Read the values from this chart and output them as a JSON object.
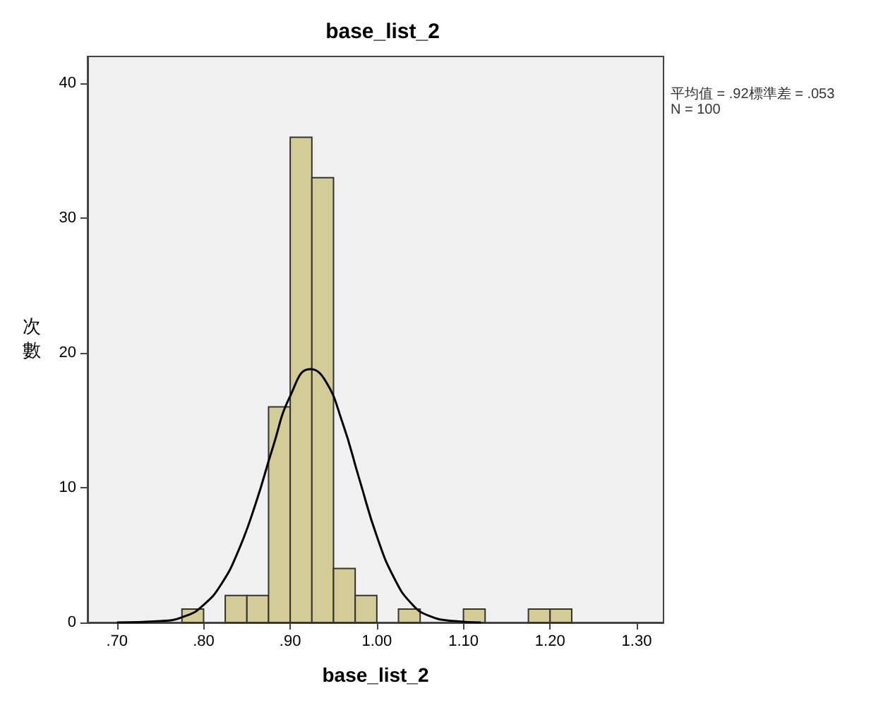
{
  "chart_data": {
    "type": "histogram",
    "title": "base_list_2",
    "xlabel": "base_list_2",
    "ylabel": "次數",
    "annotations": [
      "平均值 = .92標準差 = .053",
      "N = 100"
    ],
    "bins": [
      0.775,
      0.8,
      0.825,
      0.85,
      0.875,
      0.9,
      0.925,
      0.95,
      0.975,
      1.0,
      1.025,
      1.05,
      1.075,
      1.1,
      1.125,
      1.15,
      1.175,
      1.2,
      1.225
    ],
    "series": [
      {
        "color": "#d4cc96",
        "values": [
          1,
          0,
          2,
          2,
          16,
          36,
          33,
          4,
          2,
          0,
          1,
          0,
          0,
          1,
          0,
          0,
          1,
          1
        ]
      },
      {
        "type": "line",
        "color": "#000000",
        "x": [
          0.7,
          0.75,
          0.78,
          0.8,
          0.82,
          0.84,
          0.86,
          0.88,
          0.9,
          0.923,
          0.94,
          0.96,
          0.98,
          1.0,
          1.02,
          1.04,
          1.06,
          1.09,
          1.12
        ],
        "values": [
          0,
          0.1,
          0.5,
          1.3,
          2.8,
          5.3,
          8.8,
          13,
          16.8,
          18.8,
          18,
          14.9,
          10.6,
          6.4,
          3.3,
          1.4,
          0.5,
          0.1,
          0
        ]
      }
    ],
    "marker": "none",
    "line_style": "solid",
    "xlim": [
      0.666,
      1.331
    ],
    "xticks": [
      {
        "value": 0.7,
        "label": ".70"
      },
      {
        "value": 0.8,
        "label": ".80"
      },
      {
        "value": 0.9,
        "label": ".90"
      },
      {
        "value": 1.0,
        "label": "1.00"
      },
      {
        "value": 1.1,
        "label": "1.10"
      },
      {
        "value": 1.2,
        "label": "1.20"
      },
      {
        "value": 1.3,
        "label": "1.30"
      }
    ],
    "ylim": [
      0,
      42
    ],
    "yticks": [
      0,
      10,
      20,
      30,
      40
    ],
    "grid": false
  }
}
